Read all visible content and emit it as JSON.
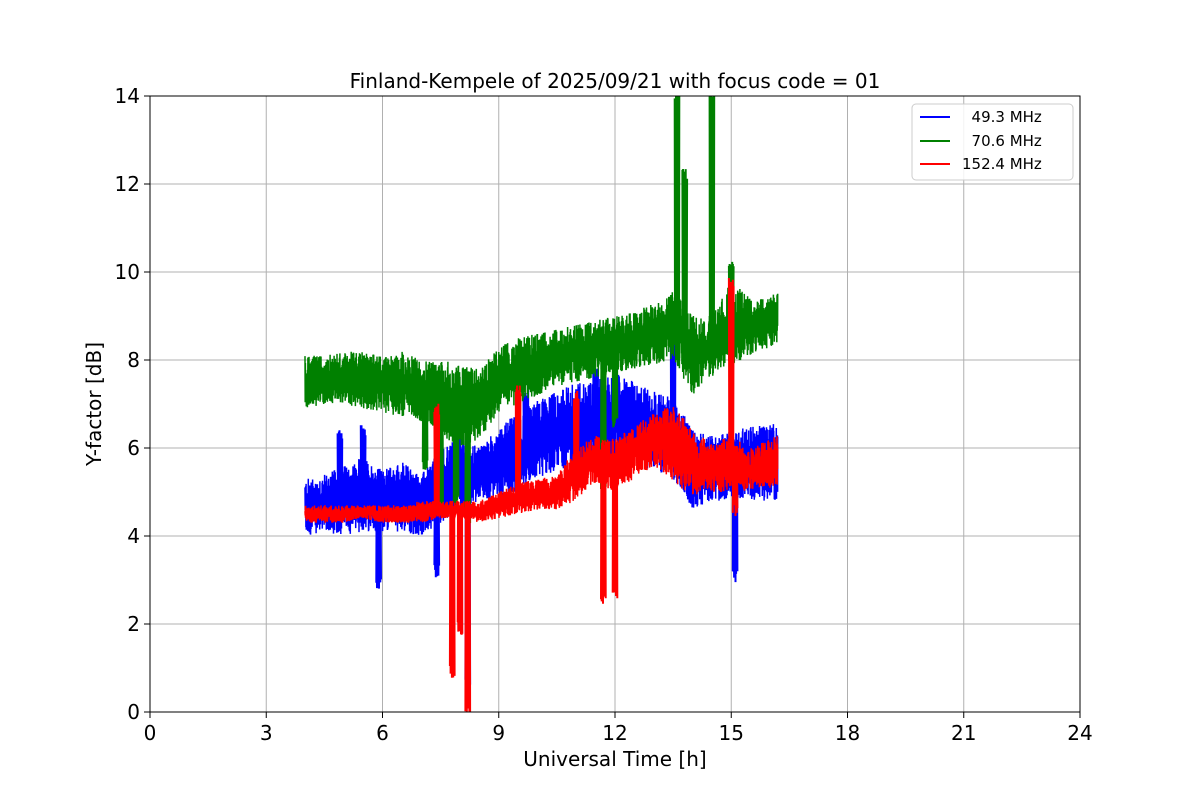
{
  "chart_data": {
    "type": "line",
    "title": "Finland-Kempele of 2025/09/21 with focus code = 01",
    "xlabel": "Universal Time [h]",
    "ylabel": "Y-factor [dB]",
    "xlim": [
      0,
      24
    ],
    "ylim": [
      0,
      14
    ],
    "xticks": [
      0,
      3,
      6,
      9,
      12,
      15,
      18,
      21,
      24
    ],
    "yticks": [
      0,
      2,
      4,
      6,
      8,
      10,
      12,
      14
    ],
    "grid": true,
    "legend_position": "top-right",
    "series": [
      {
        "name": "  49.3 MHz",
        "color": "#0000ff",
        "band": [
          [
            4.0,
            4.0,
            5.3
          ],
          [
            4.5,
            4.1,
            5.4
          ],
          [
            5.0,
            4.0,
            5.6
          ],
          [
            5.5,
            4.1,
            5.8
          ],
          [
            6.0,
            4.1,
            5.5
          ],
          [
            6.5,
            4.1,
            5.7
          ],
          [
            7.0,
            4.0,
            5.4
          ],
          [
            7.5,
            4.3,
            6.0
          ],
          [
            8.0,
            4.6,
            6.3
          ],
          [
            8.5,
            4.8,
            6.0
          ],
          [
            9.0,
            4.8,
            6.5
          ],
          [
            9.5,
            5.0,
            6.8
          ],
          [
            10.0,
            5.3,
            7.1
          ],
          [
            10.5,
            5.5,
            7.3
          ],
          [
            11.0,
            5.6,
            7.5
          ],
          [
            11.5,
            5.6,
            7.6
          ],
          [
            12.0,
            5.7,
            7.7
          ],
          [
            12.5,
            5.6,
            7.5
          ],
          [
            13.0,
            5.5,
            7.3
          ],
          [
            13.5,
            5.3,
            7.2
          ],
          [
            14.0,
            4.6,
            6.4
          ],
          [
            14.5,
            4.8,
            6.3
          ],
          [
            15.0,
            4.8,
            6.4
          ],
          [
            15.5,
            4.8,
            6.5
          ],
          [
            16.0,
            4.8,
            6.6
          ],
          [
            16.2,
            4.8,
            6.6
          ]
        ],
        "spikes": [
          [
            4.9,
            6.3
          ],
          [
            5.5,
            6.4
          ],
          [
            5.9,
            2.9
          ],
          [
            7.4,
            3.2
          ],
          [
            8.2,
            0.7
          ],
          [
            9.7,
            7.2
          ],
          [
            11.5,
            7.7
          ],
          [
            13.5,
            8.9
          ],
          [
            15.1,
            3.1
          ]
        ]
      },
      {
        "name": "  70.6 MHz",
        "color": "#008000",
        "band": [
          [
            4.0,
            6.9,
            8.1
          ],
          [
            4.5,
            7.0,
            8.1
          ],
          [
            5.0,
            7.0,
            8.2
          ],
          [
            5.5,
            6.9,
            8.2
          ],
          [
            6.0,
            6.8,
            8.1
          ],
          [
            6.5,
            6.7,
            8.2
          ],
          [
            7.0,
            6.6,
            8.0
          ],
          [
            7.5,
            6.3,
            8.0
          ],
          [
            8.0,
            6.0,
            7.9
          ],
          [
            8.5,
            6.2,
            7.8
          ],
          [
            9.0,
            6.8,
            8.3
          ],
          [
            9.5,
            7.0,
            8.5
          ],
          [
            10.0,
            7.2,
            8.6
          ],
          [
            10.5,
            7.4,
            8.7
          ],
          [
            11.0,
            7.5,
            8.8
          ],
          [
            11.5,
            7.6,
            8.9
          ],
          [
            12.0,
            7.7,
            9.0
          ],
          [
            12.5,
            7.8,
            9.1
          ],
          [
            13.0,
            7.9,
            9.3
          ],
          [
            13.5,
            8.0,
            9.6
          ],
          [
            14.0,
            7.2,
            9.0
          ],
          [
            14.5,
            7.6,
            9.0
          ],
          [
            15.0,
            7.9,
            9.8
          ],
          [
            15.5,
            8.1,
            9.4
          ],
          [
            16.0,
            8.3,
            9.4
          ],
          [
            16.2,
            8.4,
            9.6
          ]
        ],
        "spikes": [
          [
            7.1,
            5.6
          ],
          [
            7.5,
            4.6
          ],
          [
            7.9,
            4.8
          ],
          [
            8.2,
            4.4
          ],
          [
            11.7,
            5.1
          ],
          [
            12.0,
            6.6
          ],
          [
            13.6,
            14.0
          ],
          [
            13.8,
            12.2
          ],
          [
            14.5,
            14.0
          ],
          [
            15.0,
            10.1
          ]
        ]
      },
      {
        "name": "152.4 MHz",
        "color": "#ff0000",
        "band": [
          [
            4.0,
            4.3,
            4.7
          ],
          [
            4.5,
            4.3,
            4.7
          ],
          [
            5.0,
            4.3,
            4.7
          ],
          [
            5.5,
            4.4,
            4.7
          ],
          [
            6.0,
            4.3,
            4.7
          ],
          [
            6.5,
            4.3,
            4.7
          ],
          [
            7.0,
            4.3,
            4.8
          ],
          [
            7.5,
            4.4,
            4.8
          ],
          [
            8.0,
            4.4,
            4.8
          ],
          [
            8.5,
            4.3,
            4.8
          ],
          [
            9.0,
            4.4,
            5.0
          ],
          [
            9.5,
            4.5,
            5.2
          ],
          [
            10.0,
            4.6,
            5.3
          ],
          [
            10.5,
            4.6,
            5.4
          ],
          [
            11.0,
            4.8,
            6.0
          ],
          [
            11.5,
            5.2,
            6.3
          ],
          [
            12.0,
            5.0,
            6.2
          ],
          [
            12.5,
            5.3,
            6.5
          ],
          [
            13.0,
            5.6,
            6.8
          ],
          [
            13.5,
            5.2,
            7.0
          ],
          [
            14.0,
            4.9,
            6.4
          ],
          [
            14.5,
            5.0,
            6.1
          ],
          [
            15.0,
            5.0,
            6.3
          ],
          [
            15.5,
            5.0,
            6.0
          ],
          [
            16.0,
            5.1,
            6.2
          ],
          [
            16.2,
            5.1,
            6.3
          ]
        ],
        "spikes": [
          [
            7.4,
            6.9
          ],
          [
            7.8,
            0.9
          ],
          [
            8.0,
            1.9
          ],
          [
            8.2,
            0.0
          ],
          [
            9.5,
            7.3
          ],
          [
            11.0,
            7.2
          ],
          [
            11.7,
            2.6
          ],
          [
            12.0,
            2.7
          ],
          [
            15.0,
            9.8
          ],
          [
            15.1,
            4.6
          ]
        ]
      }
    ]
  }
}
